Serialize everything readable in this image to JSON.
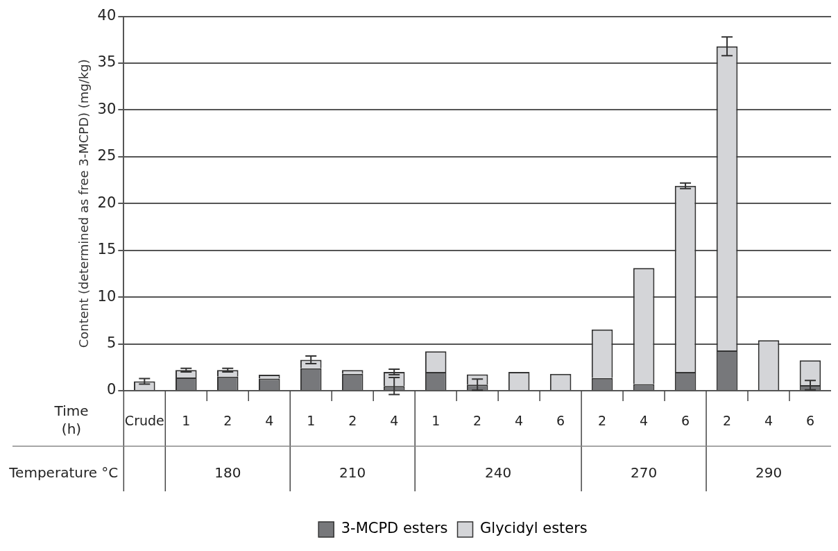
{
  "chart_data": {
    "type": "bar",
    "stacked": true,
    "ylabel": "Content (determined as free 3-MCPD) (mg/kg)",
    "xlabel": "Time (h)",
    "categories": [
      "Crude",
      "1",
      "2",
      "4",
      "1",
      "2",
      "4",
      "1",
      "2",
      "4",
      "6",
      "2",
      "4",
      "6",
      "2",
      "4",
      "6"
    ],
    "series": [
      {
        "name": "3-MCPD esters",
        "color": "#77787b",
        "values": [
          0,
          1.4,
          1.5,
          1.3,
          2.4,
          1.8,
          0.5,
          2.0,
          0.65,
          0,
          0,
          1.35,
          0.7,
          2.0,
          4.3,
          0,
          0.6
        ],
        "errors": [
          null,
          null,
          null,
          null,
          null,
          null,
          0.9,
          null,
          0.6,
          null,
          null,
          null,
          null,
          null,
          null,
          null,
          0.5
        ]
      },
      {
        "name": "Glycidyl esters",
        "color": "#d4d5d8",
        "values": [
          1.0,
          0.8,
          0.7,
          0.4,
          0.9,
          0.4,
          1.5,
          2.2,
          1.1,
          2.0,
          1.8,
          5.2,
          12.4,
          19.9,
          32.5,
          5.4,
          2.65
        ],
        "errors": [
          0.3,
          0.2,
          0.2,
          null,
          0.4,
          null,
          0.3,
          null,
          null,
          null,
          null,
          null,
          null,
          0.3,
          1.0,
          null,
          null
        ]
      }
    ],
    "ylim": [
      0,
      40
    ],
    "yticks": [
      0,
      5,
      10,
      15,
      20,
      25,
      30,
      35,
      40
    ],
    "grid": "y",
    "legend": "bottom",
    "annotations": [
      "Temperature °C",
      "180",
      "210",
      "240",
      "270",
      "290"
    ]
  }
}
